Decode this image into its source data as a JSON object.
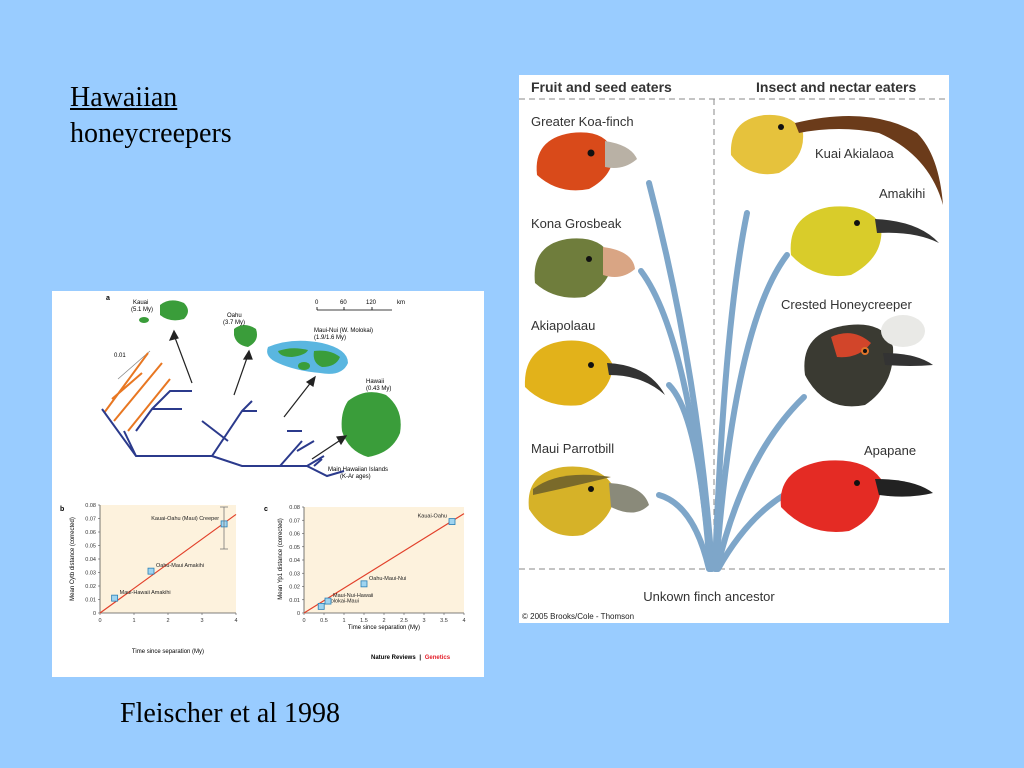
{
  "slide": {
    "title_line1": "Hawaiian",
    "title_line2": "honeycreepers",
    "caption": "Fleischer et al 1998"
  },
  "left_figure": {
    "panel_a_label": "a",
    "islands": [
      {
        "name": "Kauai",
        "age": "(5.1 My)"
      },
      {
        "name": "Oahu",
        "age": "(3.7 My)"
      },
      {
        "name": "Maui-Nui (W. Molokai)",
        "age": "(1.9/1.6 My)"
      },
      {
        "name": "Hawaii",
        "age": "(0.43 My)"
      }
    ],
    "scale_labels": [
      "0",
      "60",
      "120",
      "km"
    ],
    "tree_scale": "0.01",
    "main_islands_label_1": "Main Hawaiian Islands",
    "main_islands_label_2": "(K-Ar ages)",
    "footer_journal": "Nature Reviews",
    "footer_separator": "|",
    "footer_genetics": "Genetics",
    "accent_orange": "#e87722",
    "accent_navy": "#2b3a8c"
  },
  "chart_data": [
    {
      "type": "scatter",
      "panel": "b",
      "xlabel": "Time since separation (My)",
      "ylabel": "Mean Cytb distance (corrected)",
      "xlim": [
        0,
        4
      ],
      "ylim": [
        0,
        0.08
      ],
      "xticks": [
        "0",
        "1",
        "2",
        "3",
        "4"
      ],
      "yticks": [
        "0",
        "0.01",
        "0.02",
        "0.03",
        "0.04",
        "0.05",
        "0.06",
        "0.07",
        "0.08"
      ],
      "points": [
        {
          "x": 0.43,
          "y": 0.011,
          "label": "Maui-Hawaii Amakihi"
        },
        {
          "x": 1.5,
          "y": 0.031,
          "label": "Oahu-Maui Amakihi"
        },
        {
          "x": 3.65,
          "y": 0.066,
          "label": "Kauai-Oahu (Maui) Creeper"
        }
      ],
      "fit_line": {
        "x": [
          0,
          4
        ],
        "y": [
          0,
          0.073
        ]
      }
    },
    {
      "type": "scatter",
      "panel": "c",
      "xlabel": "Time since separation (My)",
      "ylabel": "Mean Yp1 distance (corrected)",
      "xlim": [
        0,
        4
      ],
      "ylim": [
        0,
        0.08
      ],
      "xticks": [
        "0",
        "0.5",
        "1",
        "1.5",
        "2",
        "2.5",
        "3",
        "3.5",
        "4"
      ],
      "yticks": [
        "0",
        "0.01",
        "0.02",
        "0.03",
        "0.04",
        "0.05",
        "0.06",
        "0.07",
        "0.08"
      ],
      "points": [
        {
          "x": 0.43,
          "y": 0.005,
          "label": "Molokai-Maui"
        },
        {
          "x": 0.6,
          "y": 0.009,
          "label": "Maui-Nui-Hawaii"
        },
        {
          "x": 1.5,
          "y": 0.022,
          "label": "Oahu-Maui-Nui"
        },
        {
          "x": 3.7,
          "y": 0.069,
          "label": "Kauai-Oahu"
        }
      ],
      "fit_line": {
        "x": [
          0,
          4
        ],
        "y": [
          0,
          0.075
        ]
      }
    }
  ],
  "right_figure": {
    "header_left": "Fruit and seed eaters",
    "header_right": "Insect and nectar eaters",
    "birds_left": [
      "Greater Koa-finch",
      "Kona Grosbeak",
      "Akiapolaau",
      "Maui Parrotbill"
    ],
    "birds_right": [
      "Kuai Akialaoa",
      "Amakihi",
      "Crested Honeycreeper",
      "Apapane"
    ],
    "ancestor": "Unkown finch ancestor",
    "copyright": "© 2005 Brooks/Cole - Thomson",
    "branch_color": "#7ea6c9"
  }
}
